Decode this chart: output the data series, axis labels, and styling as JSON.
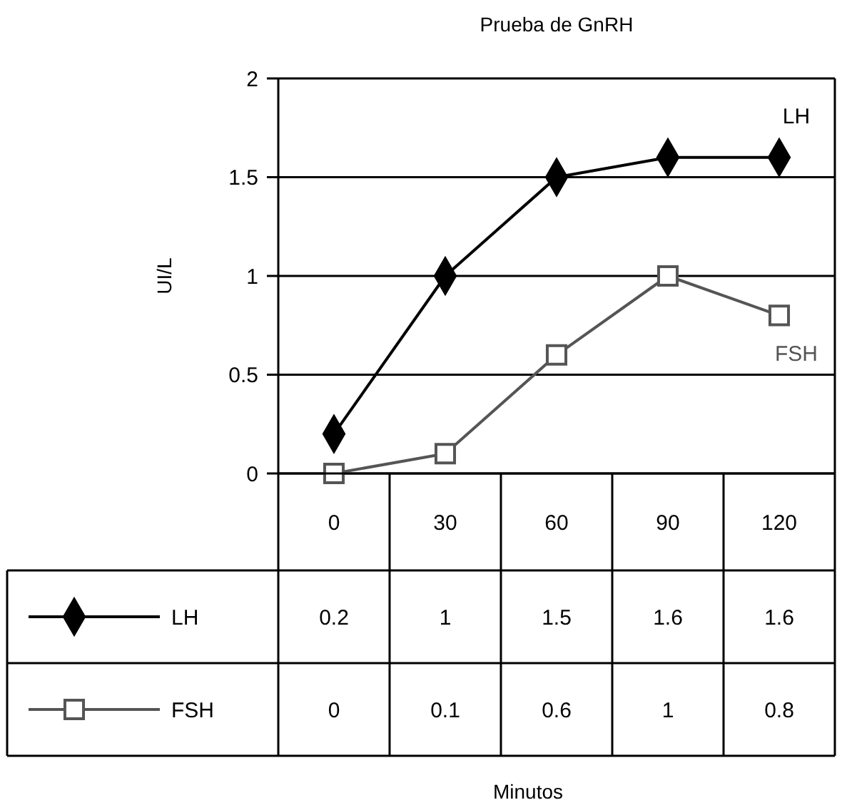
{
  "chart_data": {
    "type": "line",
    "title": "Prueba de GnRH",
    "annotations": [
      "Minutos"
    ],
    "ylabel": "UI/L",
    "categories": [
      "0",
      "30",
      "60",
      "90",
      "120"
    ],
    "series": [
      {
        "name": "LH",
        "color": "#000000",
        "marker": "diamond",
        "values": [
          0.2,
          1,
          1.5,
          1.6,
          1.6
        ]
      },
      {
        "name": "FSH",
        "color": "#555555",
        "marker": "square",
        "values": [
          0,
          0.1,
          0.6,
          1,
          0.8
        ]
      }
    ],
    "ylim": [
      0,
      2
    ],
    "yticks": [
      0,
      0.5,
      1,
      1.5,
      2
    ],
    "grid": "y",
    "data_labels": true,
    "legend": "right",
    "line_style": "solid"
  }
}
